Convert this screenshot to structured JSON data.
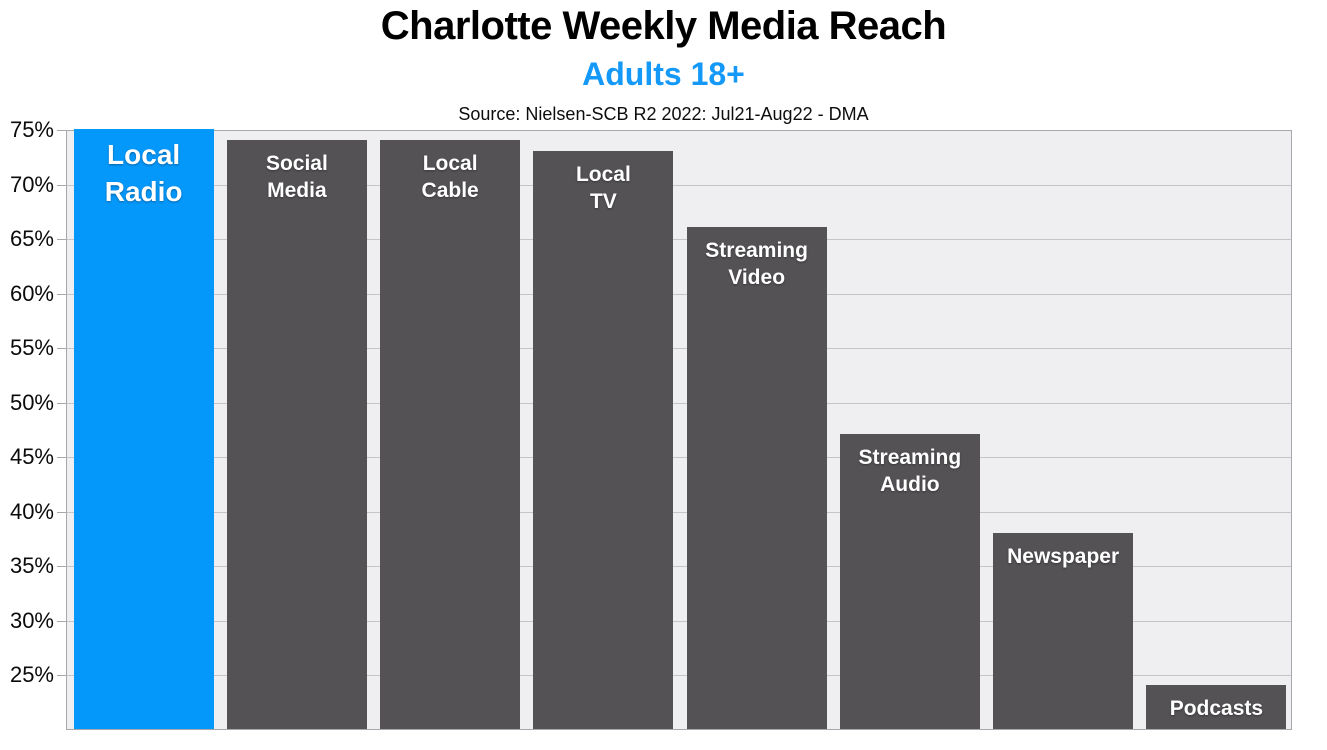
{
  "colors": {
    "accent_blue": "#0598fb",
    "subtitle_blue": "#1499f8",
    "bar_gray": "#545255",
    "plot_background": "#efeef1",
    "gridline": "#c5c4c9",
    "axis_border": "#a8a7ab",
    "bar_label_text": "#ffffff",
    "title_text": "#000000"
  },
  "chart_data": {
    "type": "bar",
    "title": "Charlotte Weekly Media Reach",
    "subtitle": "Adults 18+",
    "source": "Source: Nielsen-SCB R2 2022: Jul21-Aug22 - DMA",
    "categories": [
      "Local Radio",
      "Social Media",
      "Local Cable",
      "Local TV",
      "Streaming Video",
      "Streaming Audio",
      "Newspaper",
      "Podcasts"
    ],
    "values": [
      75,
      74,
      74,
      73,
      66,
      47,
      38,
      24
    ],
    "unit": "%",
    "bar_label_lines": [
      [
        "Local",
        "Radio"
      ],
      [
        "Social",
        "Media"
      ],
      [
        "Local",
        "Cable"
      ],
      [
        "Local",
        "TV"
      ],
      [
        "Streaming",
        "Video"
      ],
      [
        "Streaming",
        "Audio"
      ],
      [
        "Newspaper"
      ],
      [
        "Podcasts"
      ]
    ],
    "bar_colors": [
      "#0598fb",
      "#545255",
      "#545255",
      "#545255",
      "#545255",
      "#545255",
      "#545255",
      "#545255"
    ],
    "highlight_index": 0,
    "xlabel": "",
    "ylabel": "",
    "ylim": [
      20,
      75
    ],
    "yticks": [
      75,
      70,
      65,
      60,
      55,
      50,
      45,
      40,
      35,
      30,
      25
    ],
    "ytick_suffix": "%",
    "grid": true,
    "legend": false
  }
}
